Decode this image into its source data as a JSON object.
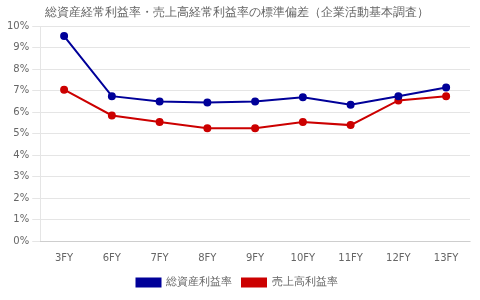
{
  "chart_data": {
    "type": "line",
    "title": "総資産経常利益率・売上高経常利益率の標準偏差（企業活動基本調査）",
    "categories": [
      "3FY",
      "6FY",
      "7FY",
      "8FY",
      "9FY",
      "10FY",
      "11FY",
      "12FY",
      "13FY"
    ],
    "series": [
      {
        "name": "総資産利益率",
        "color": "#000099",
        "marker": "circle",
        "values": [
          9.55,
          6.75,
          6.5,
          6.45,
          6.5,
          6.7,
          6.35,
          6.75,
          7.15
        ]
      },
      {
        "name": "売上高利益率",
        "color": "#cc0000",
        "marker": "circle",
        "values": [
          7.05,
          5.85,
          5.55,
          5.25,
          5.25,
          5.55,
          5.4,
          6.55,
          6.75
        ]
      }
    ],
    "ylim": [
      0,
      10
    ],
    "yticks": [
      {
        "value": 0,
        "label": "0%"
      },
      {
        "value": 1,
        "label": "1%"
      },
      {
        "value": 2,
        "label": "2%"
      },
      {
        "value": 3,
        "label": "3%"
      },
      {
        "value": 4,
        "label": "4%"
      },
      {
        "value": 5,
        "label": "5%"
      },
      {
        "value": 6,
        "label": "6%"
      },
      {
        "value": 7,
        "label": "7%"
      },
      {
        "value": 8,
        "label": "8%"
      },
      {
        "value": 9,
        "label": "9%"
      },
      {
        "value": 10,
        "label": "10%"
      }
    ],
    "grid": "y",
    "legend": "bottom"
  }
}
